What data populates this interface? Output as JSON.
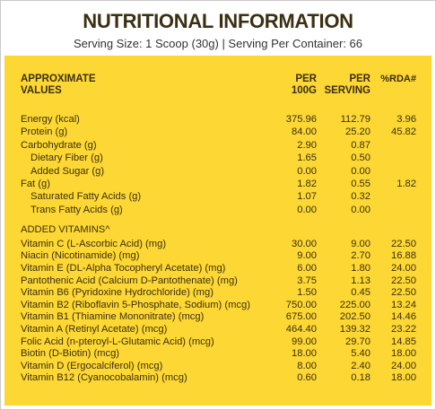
{
  "header": {
    "title": "NUTRITIONAL INFORMATION",
    "serving": "Serving Size: 1 Scoop (30g) | Serving Per Container: 66"
  },
  "table": {
    "columns": [
      [
        "APPROXIMATE",
        "VALUES"
      ],
      [
        "PER",
        "100G"
      ],
      [
        "PER",
        "SERVING"
      ],
      [
        "%RDA#"
      ]
    ],
    "groups": [
      {
        "rows": [
          {
            "name": "Energy (kcal)",
            "per100": "375.96",
            "serving": "112.79",
            "rda": "3.96"
          },
          {
            "name": "Protein (g)",
            "per100": "84.00",
            "serving": "25.20",
            "rda": "45.82"
          },
          {
            "name": "Carbohydrate (g)",
            "per100": "2.90",
            "serving": "0.87",
            "rda": null
          },
          {
            "name": "Dietary Fiber (g)",
            "per100": "1.65",
            "serving": "0.50",
            "rda": null,
            "indent": true
          },
          {
            "name": "Added Sugar (g)",
            "per100": "0.00",
            "serving": "0.00",
            "rda": null,
            "indent": true
          },
          {
            "name": "Fat (g)",
            "per100": "1.82",
            "serving": "0.55",
            "rda": "1.82"
          },
          {
            "name": "Saturated Fatty Acids (g)",
            "per100": "1.07",
            "serving": "0.32",
            "rda": null,
            "indent": true
          },
          {
            "name": "Trans Fatty Acids (g)",
            "per100": "0.00",
            "serving": "0.00",
            "rda": null,
            "indent": true
          }
        ]
      },
      {
        "title": "ADDED VITAMINS^",
        "rows": [
          {
            "name": "Vitamin C (L-Ascorbic Acid) (mg)",
            "per100": "30.00",
            "serving": "9.00",
            "rda": "22.50"
          },
          {
            "name": "Niacin (Nicotinamide) (mg)",
            "per100": "9.00",
            "serving": "2.70",
            "rda": "16.88"
          },
          {
            "name": "Vitamin E (DL-Alpha Tocopheryl Acetate) (mg)",
            "per100": "6.00",
            "serving": "1.80",
            "rda": "24.00"
          },
          {
            "name": "Pantothenic Acid (Calcium D-Pantothenate) (mg)",
            "per100": "3.75",
            "serving": "1.13",
            "rda": "22.50"
          },
          {
            "name": "Vitamin B6 (Pyridoxine Hydrochloride) (mg)",
            "per100": "1.50",
            "serving": "0.45",
            "rda": "22.50"
          },
          {
            "name": "Vitamin B2 (Riboflavin 5-Phosphate, Sodium) (mcg)",
            "per100": "750.00",
            "serving": "225.00",
            "rda": "13.24"
          },
          {
            "name": "Vitamin B1 (Thiamine Mononitrate) (mcg)",
            "per100": "675.00",
            "serving": "202.50",
            "rda": "14.46"
          },
          {
            "name": "Vitamin A (Retinyl Acetate) (mcg)",
            "per100": "464.40",
            "serving": "139.32",
            "rda": "23.22"
          },
          {
            "name": "Folic Acid (n-pteroyl-L-Glutamic Acid) (mcg)",
            "per100": "99.00",
            "serving": "29.70",
            "rda": "14.85"
          },
          {
            "name": "Biotin (D-Biotin) (mcg)",
            "per100": "18.00",
            "serving": "5.40",
            "rda": "18.00"
          },
          {
            "name": "Vitamin D (Ergocalciferol) (mcg)",
            "per100": "8.00",
            "serving": "2.40",
            "rda": "24.00"
          },
          {
            "name": "Vitamin B12 (Cyanocobalamin) (mcg)",
            "per100": "0.60",
            "serving": "0.18",
            "rda": "18.00"
          }
        ]
      }
    ]
  }
}
